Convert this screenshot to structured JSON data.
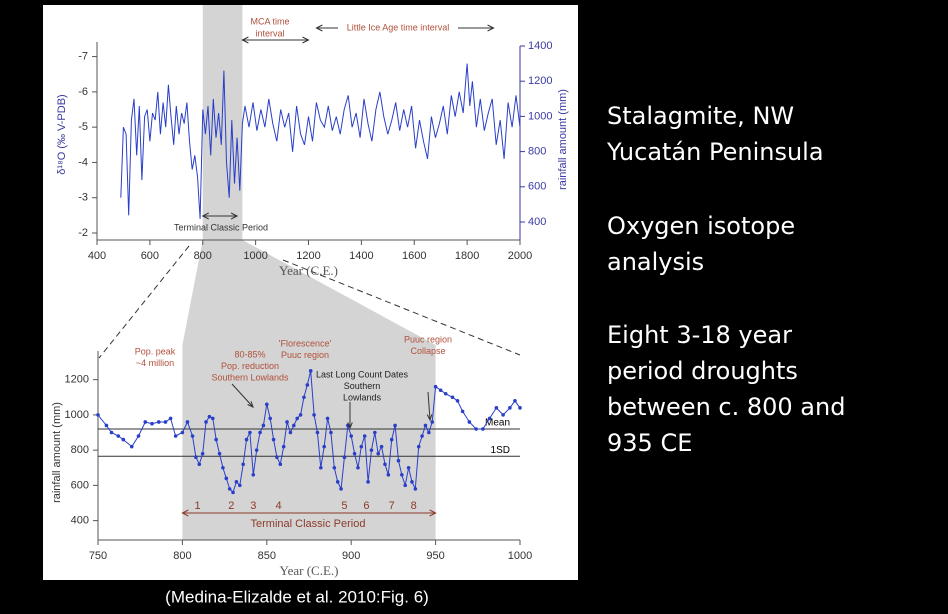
{
  "chart_data": [
    {
      "type": "line",
      "xlabel": "Year (C.E.)",
      "ylabel": "δ¹⁸O (‰ V-PDB)",
      "y2label": "rainfall amount (mm)",
      "xlim": [
        400,
        2000
      ],
      "xticks": [
        400,
        600,
        800,
        1000,
        1200,
        1400,
        1600,
        1800,
        2000
      ],
      "ylim": [
        -2,
        -7.3
      ],
      "yticks": [
        -7,
        -6,
        -5,
        -4,
        -3,
        -2
      ],
      "y2lim": [
        337.5,
        1400
      ],
      "y2ticks": [
        400,
        600,
        800,
        1000,
        1200,
        1400
      ],
      "highlight": [
        800,
        950
      ],
      "annotation_color": "#b0503a",
      "series": [
        {
          "color": "#2a3fc9",
          "x": [
            490,
            500,
            510,
            520,
            530,
            540,
            550,
            560,
            570,
            580,
            590,
            600,
            610,
            620,
            630,
            640,
            650,
            660,
            670,
            680,
            690,
            700,
            710,
            720,
            730,
            740,
            750,
            760,
            770,
            780,
            790,
            800,
            810,
            820,
            830,
            840,
            850,
            860,
            870,
            880,
            890,
            900,
            910,
            920,
            930,
            940,
            950,
            960,
            975,
            990,
            1005,
            1020,
            1035,
            1050,
            1065,
            1080,
            1095,
            1110,
            1125,
            1140,
            1155,
            1170,
            1185,
            1200,
            1215,
            1230,
            1245,
            1260,
            1275,
            1290,
            1305,
            1320,
            1335,
            1350,
            1365,
            1380,
            1395,
            1410,
            1425,
            1440,
            1455,
            1470,
            1485,
            1500,
            1515,
            1530,
            1545,
            1560,
            1575,
            1590,
            1605,
            1620,
            1635,
            1650,
            1665,
            1680,
            1695,
            1710,
            1725,
            1740,
            1755,
            1770,
            1785,
            1800,
            1810,
            1820,
            1835,
            1850,
            1865,
            1880,
            1895,
            1910,
            1925,
            1940,
            1955,
            1970,
            1985,
            2000
          ],
          "values": [
            -3.0,
            -5.0,
            -4.8,
            -2.5,
            -5.2,
            -5.8,
            -4.2,
            -5.6,
            -3.5,
            -5.3,
            -5.5,
            -4.6,
            -5.4,
            -5.2,
            -6.0,
            -4.8,
            -5.7,
            -5.0,
            -6.2,
            -5.3,
            -4.5,
            -5.6,
            -4.8,
            -5.4,
            -5.1,
            -5.7,
            -4.6,
            -3.8,
            -4.2,
            -3.6,
            -2.4,
            -5.5,
            -4.8,
            -5.6,
            -4.2,
            -5.8,
            -4.7,
            -5.4,
            -4.5,
            -6.6,
            -4.0,
            -3.0,
            -5.2,
            -3.4,
            -4.7,
            -3.2,
            -5.1,
            -5.6,
            -5.0,
            -5.7,
            -4.9,
            -5.5,
            -5.0,
            -5.8,
            -5.1,
            -4.6,
            -5.5,
            -5.0,
            -5.4,
            -4.3,
            -5.6,
            -4.8,
            -4.5,
            -5.3,
            -4.6,
            -5.7,
            -5.2,
            -5.0,
            -5.6,
            -4.9,
            -5.3,
            -4.8,
            -5.5,
            -5.9,
            -5.0,
            -5.4,
            -4.7,
            -5.8,
            -5.1,
            -4.6,
            -5.5,
            -6.0,
            -5.3,
            -4.8,
            -5.2,
            -5.7,
            -4.9,
            -5.5,
            -5.0,
            -5.6,
            -4.4,
            -5.2,
            -4.6,
            -4.1,
            -5.3,
            -4.7,
            -5.1,
            -5.6,
            -4.8,
            -5.9,
            -5.3,
            -6.0,
            -5.4,
            -6.8,
            -5.6,
            -6.3,
            -5.0,
            -5.8,
            -4.9,
            -5.4,
            -5.8,
            -4.5,
            -5.2,
            -4.1,
            -5.7,
            -5.0,
            -5.9,
            -5.0
          ]
        }
      ],
      "annotations": [
        {
          "lines": [
            "MCA time",
            "interval"
          ],
          "span": [
            950,
            1200
          ]
        },
        {
          "lines": [
            "Little Ice Age time interval"
          ],
          "span": [
            1230,
            1900
          ]
        },
        {
          "lines": [
            "Terminal Classic Period"
          ],
          "span": [
            800,
            930
          ]
        }
      ]
    },
    {
      "type": "line",
      "xlabel": "Year (C.E.)",
      "ylabel": "rainfall amount (mm)",
      "xlim": [
        750,
        1000
      ],
      "xticks": [
        750,
        800,
        850,
        900,
        950,
        1000
      ],
      "ylim": [
        290,
        1340
      ],
      "yticks": [
        400,
        600,
        800,
        1000,
        1200
      ],
      "highlight": [
        800,
        950
      ],
      "annotation_color": "#b0503a",
      "markers": true,
      "reference_lines": [
        {
          "label": "Mean",
          "value": 920
        },
        {
          "label": "1SD",
          "value": 765
        }
      ],
      "series": [
        {
          "color": "#2a3fc9",
          "x": [
            750,
            755,
            758,
            762,
            765,
            770,
            774,
            778,
            782,
            786,
            790,
            793,
            796,
            800,
            803,
            806,
            808,
            810,
            812,
            814,
            816,
            818,
            820,
            822,
            824,
            826,
            828,
            830,
            832,
            834,
            836,
            838,
            840,
            842,
            844,
            846,
            848,
            850,
            852,
            854,
            856,
            858,
            860,
            862,
            864,
            866,
            868,
            870,
            872,
            874,
            876,
            878,
            880,
            882,
            884,
            886,
            888,
            890,
            892,
            894,
            896,
            898,
            900,
            902,
            904,
            906,
            908,
            910,
            912,
            914,
            916,
            918,
            920,
            922,
            924,
            926,
            928,
            930,
            932,
            934,
            936,
            938,
            940,
            942,
            944,
            946,
            948,
            950,
            953,
            956,
            960,
            963,
            966,
            970,
            974,
            978,
            982,
            986,
            990,
            994,
            997,
            1000
          ],
          "values": [
            1000,
            940,
            900,
            880,
            860,
            820,
            880,
            960,
            950,
            960,
            960,
            980,
            880,
            900,
            960,
            880,
            760,
            720,
            780,
            960,
            990,
            980,
            860,
            780,
            700,
            640,
            580,
            560,
            620,
            600,
            720,
            860,
            900,
            660,
            800,
            900,
            940,
            1060,
            980,
            860,
            760,
            720,
            820,
            960,
            900,
            940,
            980,
            1000,
            1100,
            1170,
            1250,
            1000,
            900,
            700,
            820,
            980,
            900,
            700,
            620,
            580,
            760,
            940,
            880,
            780,
            700,
            820,
            880,
            620,
            800,
            900,
            780,
            820,
            720,
            660,
            860,
            940,
            740,
            660,
            600,
            700,
            620,
            580,
            820,
            880,
            940,
            900,
            960,
            1160,
            1140,
            1120,
            1100,
            1080,
            1020,
            960,
            920,
            920,
            980,
            1040,
            1000,
            1040,
            1080,
            1040
          ]
        }
      ],
      "annotations": [
        {
          "lines": [
            "Pop. peak",
            "~4 million"
          ]
        },
        {
          "lines": [
            "80-85%",
            "Pop. reduction",
            "Southern Lowlands"
          ]
        },
        {
          "lines": [
            "'Florescence'",
            "Puuc region"
          ]
        },
        {
          "lines": [
            "Last Long Count Dates",
            "Southern",
            "Lowlands"
          ]
        },
        {
          "lines": [
            "Puuc region",
            "Collapse"
          ]
        },
        {
          "lines": [
            "Terminal Classic Period"
          ],
          "span": [
            800,
            950
          ]
        }
      ],
      "drought_labels": [
        {
          "text": "1",
          "x": 809
        },
        {
          "text": "2",
          "x": 829
        },
        {
          "text": "3",
          "x": 842
        },
        {
          "text": "4",
          "x": 857
        },
        {
          "text": "5",
          "x": 896
        },
        {
          "text": "6",
          "x": 909
        },
        {
          "text": "7",
          "x": 924
        },
        {
          "text": "8",
          "x": 937
        }
      ]
    }
  ],
  "slide": {
    "text_blocks": [
      [
        "Stalagmite, NW",
        "Yucatán Peninsula"
      ],
      [
        "Oxygen isotope",
        "analysis"
      ],
      [
        "Eight 3-18 year",
        "period droughts",
        "between c. 800 and",
        "935 CE"
      ]
    ],
    "caption": "(Medina-Elizalde et al. 2010:Fig. 6)"
  }
}
